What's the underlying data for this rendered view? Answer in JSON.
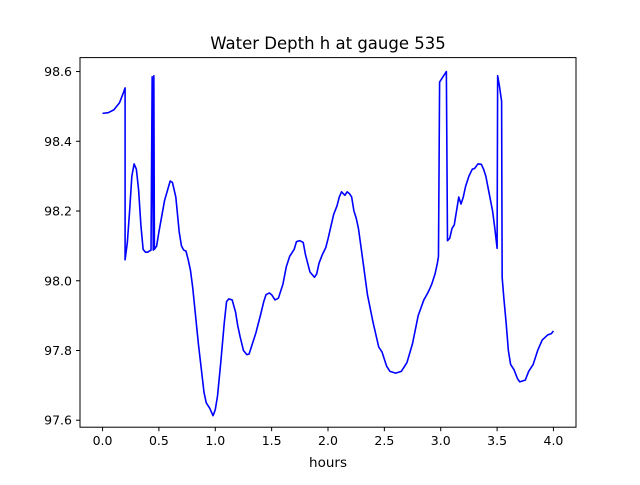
{
  "chart_data": {
    "type": "line",
    "title": "Water Depth h at gauge 535",
    "xlabel": "hours",
    "ylabel": "",
    "xlim": [
      -0.2,
      4.2
    ],
    "ylim": [
      97.58,
      98.64
    ],
    "grid": false,
    "x_ticks": [
      {
        "value": 0.0,
        "label": "0.0"
      },
      {
        "value": 0.5,
        "label": "0.5"
      },
      {
        "value": 1.0,
        "label": "1.0"
      },
      {
        "value": 1.5,
        "label": "1.5"
      },
      {
        "value": 2.0,
        "label": "2.0"
      },
      {
        "value": 2.5,
        "label": "2.5"
      },
      {
        "value": 3.0,
        "label": "3.0"
      },
      {
        "value": 3.5,
        "label": "3.5"
      },
      {
        "value": 4.0,
        "label": "4.0"
      }
    ],
    "y_ticks": [
      {
        "value": 97.6,
        "label": "97.6"
      },
      {
        "value": 97.8,
        "label": "97.8"
      },
      {
        "value": 98.0,
        "label": "98.0"
      },
      {
        "value": 98.2,
        "label": "98.2"
      },
      {
        "value": 98.4,
        "label": "98.4"
      },
      {
        "value": 98.6,
        "label": "98.6"
      }
    ],
    "series": [
      {
        "color": "#0000ff",
        "points": [
          [
            0.0,
            98.48
          ],
          [
            0.05,
            98.482
          ],
          [
            0.1,
            98.49
          ],
          [
            0.15,
            98.51
          ],
          [
            0.18,
            98.535
          ],
          [
            0.2,
            98.553
          ],
          [
            0.2,
            98.06
          ],
          [
            0.22,
            98.11
          ],
          [
            0.24,
            98.2
          ],
          [
            0.26,
            98.3
          ],
          [
            0.28,
            98.335
          ],
          [
            0.3,
            98.32
          ],
          [
            0.32,
            98.26
          ],
          [
            0.34,
            98.16
          ],
          [
            0.36,
            98.09
          ],
          [
            0.38,
            98.082
          ],
          [
            0.4,
            98.082
          ],
          [
            0.43,
            98.088
          ],
          [
            0.44,
            98.585
          ],
          [
            0.45,
            98.088
          ],
          [
            0.455,
            98.588
          ],
          [
            0.46,
            98.09
          ],
          [
            0.48,
            98.1
          ],
          [
            0.5,
            98.14
          ],
          [
            0.55,
            98.23
          ],
          [
            0.6,
            98.286
          ],
          [
            0.62,
            98.282
          ],
          [
            0.65,
            98.24
          ],
          [
            0.68,
            98.14
          ],
          [
            0.7,
            98.1
          ],
          [
            0.72,
            98.088
          ],
          [
            0.74,
            98.085
          ],
          [
            0.76,
            98.06
          ],
          [
            0.78,
            98.03
          ],
          [
            0.8,
            97.98
          ],
          [
            0.85,
            97.82
          ],
          [
            0.9,
            97.68
          ],
          [
            0.92,
            97.65
          ],
          [
            0.95,
            97.635
          ],
          [
            0.98,
            97.613
          ],
          [
            1.0,
            97.63
          ],
          [
            1.02,
            97.67
          ],
          [
            1.05,
            97.77
          ],
          [
            1.08,
            97.88
          ],
          [
            1.1,
            97.94
          ],
          [
            1.12,
            97.948
          ],
          [
            1.15,
            97.945
          ],
          [
            1.18,
            97.91
          ],
          [
            1.2,
            97.87
          ],
          [
            1.22,
            97.84
          ],
          [
            1.25,
            97.8
          ],
          [
            1.28,
            97.788
          ],
          [
            1.3,
            97.79
          ],
          [
            1.33,
            97.82
          ],
          [
            1.36,
            97.85
          ],
          [
            1.4,
            97.9
          ],
          [
            1.43,
            97.94
          ],
          [
            1.45,
            97.96
          ],
          [
            1.48,
            97.965
          ],
          [
            1.5,
            97.96
          ],
          [
            1.53,
            97.945
          ],
          [
            1.56,
            97.95
          ],
          [
            1.6,
            97.99
          ],
          [
            1.63,
            98.04
          ],
          [
            1.66,
            98.07
          ],
          [
            1.7,
            98.09
          ],
          [
            1.72,
            98.112
          ],
          [
            1.75,
            98.115
          ],
          [
            1.78,
            98.11
          ],
          [
            1.8,
            98.075
          ],
          [
            1.82,
            98.05
          ],
          [
            1.84,
            98.025
          ],
          [
            1.88,
            98.01
          ],
          [
            1.9,
            98.02
          ],
          [
            1.92,
            98.05
          ],
          [
            1.95,
            98.075
          ],
          [
            1.98,
            98.095
          ],
          [
            2.0,
            98.12
          ],
          [
            2.05,
            98.19
          ],
          [
            2.08,
            98.215
          ],
          [
            2.1,
            98.24
          ],
          [
            2.12,
            98.255
          ],
          [
            2.15,
            98.245
          ],
          [
            2.17,
            98.255
          ],
          [
            2.19,
            98.25
          ],
          [
            2.21,
            98.24
          ],
          [
            2.23,
            98.2
          ],
          [
            2.25,
            98.18
          ],
          [
            2.27,
            98.15
          ],
          [
            2.3,
            98.08
          ],
          [
            2.35,
            97.96
          ],
          [
            2.4,
            97.88
          ],
          [
            2.45,
            97.81
          ],
          [
            2.48,
            97.795
          ],
          [
            2.5,
            97.775
          ],
          [
            2.52,
            97.755
          ],
          [
            2.55,
            97.74
          ],
          [
            2.6,
            97.735
          ],
          [
            2.65,
            97.74
          ],
          [
            2.7,
            97.765
          ],
          [
            2.75,
            97.82
          ],
          [
            2.8,
            97.9
          ],
          [
            2.85,
            97.945
          ],
          [
            2.88,
            97.962
          ],
          [
            2.9,
            97.975
          ],
          [
            2.92,
            97.99
          ],
          [
            2.95,
            98.02
          ],
          [
            2.97,
            98.05
          ],
          [
            2.98,
            98.07
          ],
          [
            2.99,
            98.57
          ],
          [
            3.0,
            98.575
          ],
          [
            3.05,
            98.6
          ],
          [
            3.06,
            98.115
          ],
          [
            3.08,
            98.122
          ],
          [
            3.1,
            98.15
          ],
          [
            3.12,
            98.16
          ],
          [
            3.14,
            98.2
          ],
          [
            3.16,
            98.24
          ],
          [
            3.18,
            98.22
          ],
          [
            3.2,
            98.24
          ],
          [
            3.22,
            98.27
          ],
          [
            3.25,
            98.3
          ],
          [
            3.28,
            98.32
          ],
          [
            3.3,
            98.322
          ],
          [
            3.33,
            98.335
          ],
          [
            3.36,
            98.334
          ],
          [
            3.38,
            98.32
          ],
          [
            3.4,
            98.3
          ],
          [
            3.43,
            98.25
          ],
          [
            3.46,
            98.2
          ],
          [
            3.48,
            98.15
          ],
          [
            3.5,
            98.093
          ],
          [
            3.505,
            98.588
          ],
          [
            3.52,
            98.56
          ],
          [
            3.54,
            98.515
          ],
          [
            3.545,
            98.01
          ],
          [
            3.56,
            97.95
          ],
          [
            3.58,
            97.88
          ],
          [
            3.6,
            97.8
          ],
          [
            3.62,
            97.76
          ],
          [
            3.65,
            97.745
          ],
          [
            3.68,
            97.72
          ],
          [
            3.7,
            97.71
          ],
          [
            3.75,
            97.715
          ],
          [
            3.78,
            97.74
          ],
          [
            3.82,
            97.76
          ],
          [
            3.86,
            97.8
          ],
          [
            3.9,
            97.83
          ],
          [
            3.95,
            97.845
          ],
          [
            3.98,
            97.848
          ],
          [
            4.0,
            97.856
          ]
        ]
      }
    ]
  }
}
